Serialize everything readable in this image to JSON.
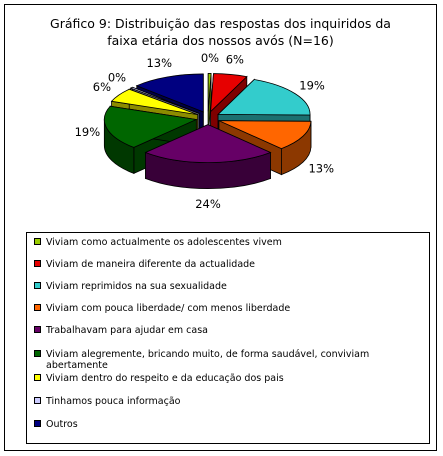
{
  "chart_data": {
    "type": "pie",
    "title": "Gráfico 9: Distribuição das respostas dos inquiridos da faixa etária dos nossos avós (N=16)",
    "title_lines": [
      "Gráfico 9: Distribuição das respostas dos inquiridos da",
      "faixa etária dos nossos avós (N=16)"
    ],
    "three_d": true,
    "exploded": true,
    "legend_position": "bottom",
    "slices": [
      {
        "label": "Viviam como actualmente os adolescentes vivem",
        "value": 0,
        "pct_label": "0%",
        "color": "#99cc00"
      },
      {
        "label": "Viviam de maneira diferente da actualidade",
        "value": 6,
        "pct_label": "6%",
        "color": "#e60000"
      },
      {
        "label": "Viviam reprimidos na sua sexualidade",
        "value": 19,
        "pct_label": "19%",
        "color": "#33cccc"
      },
      {
        "label": "Viviam com pouca liberdade/ com menos liberdade",
        "value": 13,
        "pct_label": "13%",
        "color": "#ff6600"
      },
      {
        "label": "Trabalhavam para ajudar em casa",
        "value": 24,
        "pct_label": "24%",
        "color": "#660066"
      },
      {
        "label": "Viviam alegremente, bricando muito, de forma saudável, conviviam abertamente",
        "value": 19,
        "pct_label": "19%",
        "color": "#006600"
      },
      {
        "label": "Viviam dentro do respeito e da educação dos pais",
        "value": 6,
        "pct_label": "6%",
        "color": "#ffff00"
      },
      {
        "label": "Tinhamos pouca informação",
        "value": 0,
        "pct_label": "0%",
        "color": "#ccccff"
      },
      {
        "label": "Outros",
        "value": 13,
        "pct_label": "13%",
        "color": "#000080"
      }
    ]
  }
}
